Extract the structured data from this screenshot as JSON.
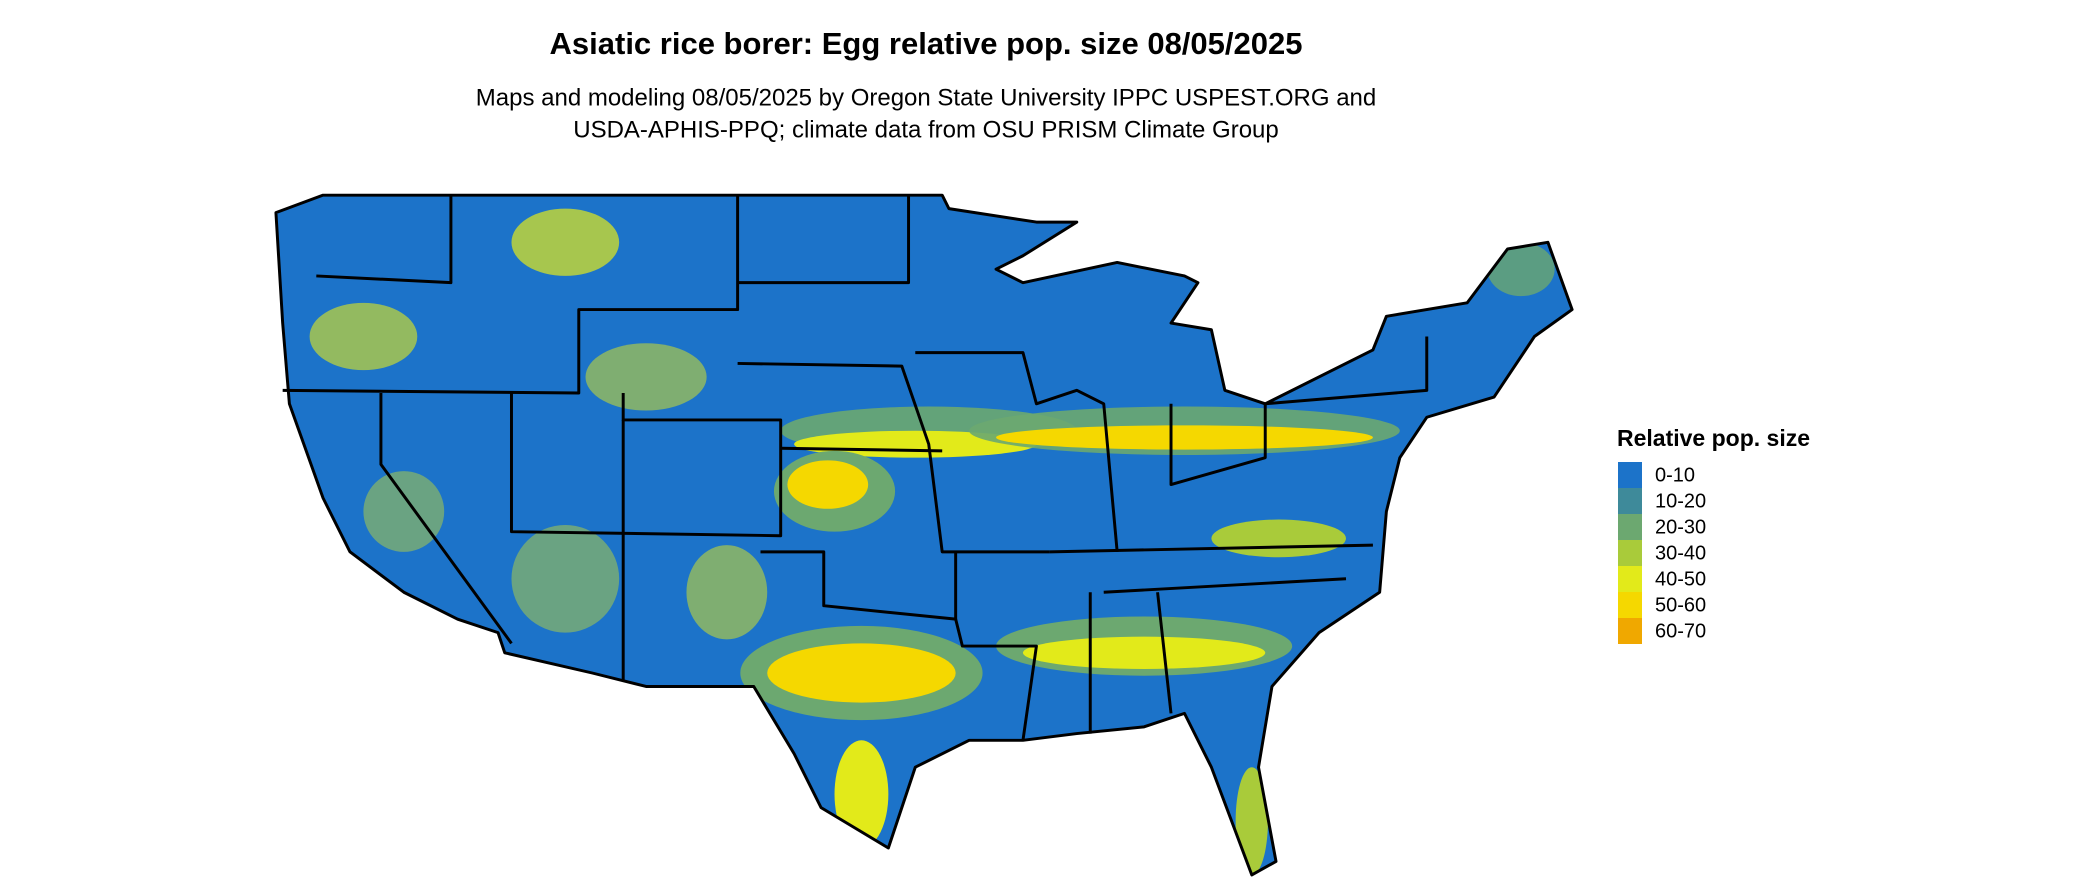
{
  "title": "Asiatic rice borer: Egg relative pop. size 08/05/2025",
  "subtitle": [
    "Maps and modeling 08/05/2025 by Oregon State University IPPC USPEST.ORG and",
    "USDA-APHIS-PPQ; climate data from OSU PRISM Climate Group"
  ],
  "legend": {
    "title": "Relative pop. size",
    "items": [
      {
        "label": "0-10",
        "color": "#1c73c9"
      },
      {
        "label": "10-20",
        "color": "#3e8a9a"
      },
      {
        "label": "20-30",
        "color": "#6ca870"
      },
      {
        "label": "30-40",
        "color": "#a9cb3a"
      },
      {
        "label": "40-50",
        "color": "#e2ea1a"
      },
      {
        "label": "50-60",
        "color": "#f5d800"
      },
      {
        "label": "60-70",
        "color": "#f0a800"
      }
    ]
  }
}
